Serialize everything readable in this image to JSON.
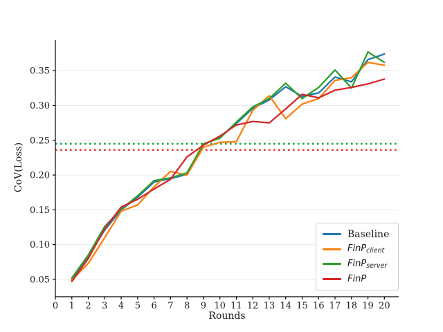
{
  "figure": {
    "background": "#ffffff"
  },
  "axes": {
    "xlabel": "Rounds",
    "ylabel": "CoV(Loss)",
    "x_tick_labels": [
      "0",
      "1",
      "2",
      "3",
      "4",
      "5",
      "6",
      "7",
      "8",
      "9",
      "10",
      "11",
      "12",
      "13",
      "14",
      "15",
      "16",
      "17",
      "18",
      "19",
      "20"
    ],
    "x_tick_values": [
      0,
      1,
      2,
      3,
      4,
      5,
      6,
      7,
      8,
      9,
      10,
      11,
      12,
      13,
      14,
      15,
      16,
      17,
      18,
      19,
      20
    ],
    "y_tick_labels": [
      "0.05",
      "0.10",
      "0.15",
      "0.20",
      "0.25",
      "0.30",
      "0.35"
    ],
    "y_tick_values": [
      0.05,
      0.1,
      0.15,
      0.2,
      0.25,
      0.3,
      0.35
    ],
    "grid": "horizontal",
    "grid_color": "#e9e9e9",
    "spine_color": "#000000"
  },
  "legend": {
    "items": [
      {
        "main": "Baseline",
        "sub": "",
        "color": "#1f77b4",
        "italic": false
      },
      {
        "main": "FinP",
        "sub": "client",
        "color": "#ff7f0e",
        "italic": true
      },
      {
        "main": "FinP",
        "sub": "server",
        "color": "#2ca02c",
        "italic": true
      },
      {
        "main": "FinP",
        "sub": "",
        "color": "#d62728",
        "italic": true
      }
    ]
  },
  "chart_data": {
    "type": "line",
    "title": "",
    "xlabel": "Rounds",
    "ylabel": "CoV(Loss)",
    "xlim": [
      0,
      20.87
    ],
    "ylim": [
      0.025,
      0.394
    ],
    "x": [
      1,
      2,
      3,
      4,
      5,
      6,
      7,
      8,
      9,
      10,
      11,
      12,
      13,
      14,
      15,
      16,
      17,
      18,
      19,
      20
    ],
    "series": [
      {
        "name": "Baseline",
        "color": "#1f77b4",
        "values": [
          0.05,
          0.083,
          0.121,
          0.15,
          0.168,
          0.19,
          0.195,
          0.201,
          0.244,
          0.254,
          0.274,
          0.296,
          0.308,
          0.327,
          0.313,
          0.318,
          0.341,
          0.334,
          0.366,
          0.374
        ]
      },
      {
        "name": "FinP_client",
        "color": "#ff7f0e",
        "values": [
          0.049,
          0.073,
          0.11,
          0.148,
          0.157,
          0.183,
          0.205,
          0.2,
          0.24,
          0.247,
          0.248,
          0.293,
          0.314,
          0.281,
          0.302,
          0.31,
          0.336,
          0.34,
          0.362,
          0.358
        ]
      },
      {
        "name": "FinP_server",
        "color": "#2ca02c",
        "values": [
          0.052,
          0.085,
          0.126,
          0.151,
          0.17,
          0.192,
          0.196,
          0.203,
          0.245,
          0.253,
          0.276,
          0.298,
          0.31,
          0.332,
          0.31,
          0.326,
          0.351,
          0.325,
          0.377,
          0.362
        ]
      },
      {
        "name": "FinP",
        "color": "#d62728",
        "values": [
          0.047,
          0.08,
          0.123,
          0.154,
          0.165,
          0.18,
          0.194,
          0.226,
          0.243,
          0.256,
          0.272,
          0.277,
          0.275,
          0.295,
          0.316,
          0.311,
          0.322,
          0.326,
          0.331,
          0.338
        ]
      }
    ],
    "reference_lines": [
      {
        "value": 0.245,
        "color": "#16a34a",
        "style": "dotted"
      },
      {
        "value": 0.236,
        "color": "#e8382c",
        "style": "dotted"
      }
    ],
    "legend_position": "lower right"
  }
}
